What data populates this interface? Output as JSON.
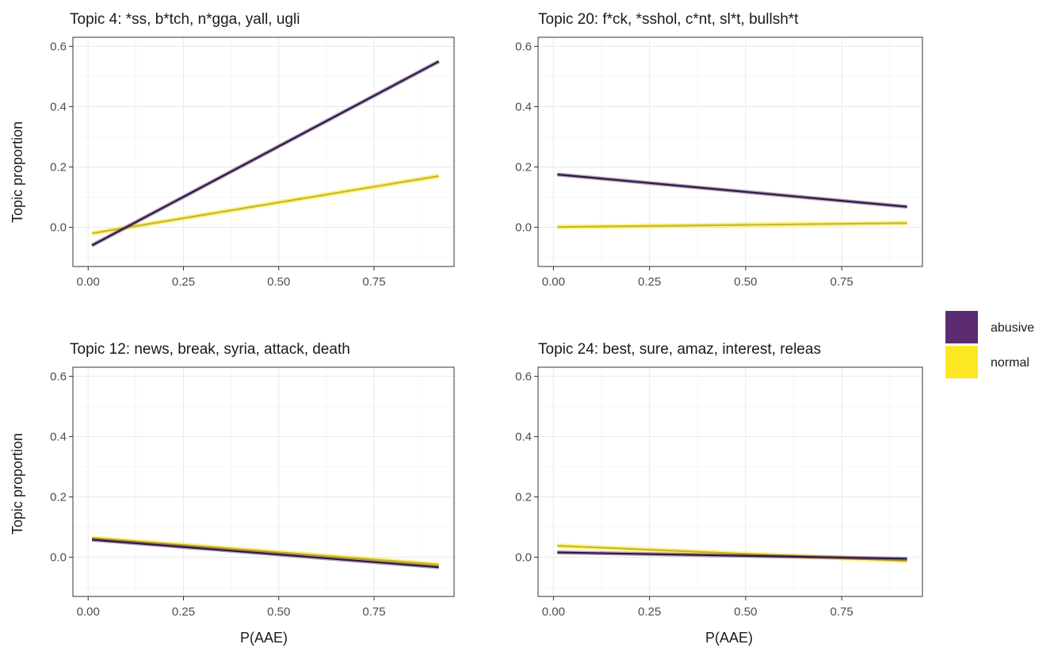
{
  "colors": {
    "abusive": "#5b2c6f",
    "normal": "#fde725",
    "abusive_line": "#2d1a3d",
    "normal_line": "#c9b62c"
  },
  "chart_data": {
    "type": "line",
    "xlabel": "P(AAE)",
    "ylabel": "Topic proportion",
    "xlim": [
      -0.04,
      0.96
    ],
    "ylim": [
      -0.13,
      0.63
    ],
    "x_ticks": [
      0.0,
      0.25,
      0.5,
      0.75
    ],
    "x_tick_labels": [
      "0.00",
      "0.25",
      "0.50",
      "0.75"
    ],
    "y_ticks": [
      0.0,
      0.2,
      0.4,
      0.6
    ],
    "y_tick_labels": [
      "0.0",
      "0.2",
      "0.4",
      "0.6"
    ],
    "grid": true,
    "legend": {
      "placement": "right",
      "entries": [
        {
          "name": "abusive",
          "color": "#5b2c6f"
        },
        {
          "name": "normal",
          "color": "#fde725"
        }
      ]
    },
    "panels": [
      {
        "title": "Topic 4: *ss, b*tch, n*gga, yall, ugli",
        "series": [
          {
            "name": "abusive",
            "x": [
              0.01,
              0.92
            ],
            "values": [
              -0.06,
              0.55
            ]
          },
          {
            "name": "normal",
            "x": [
              0.01,
              0.92
            ],
            "values": [
              -0.02,
              0.17
            ]
          }
        ]
      },
      {
        "title": "Topic 20: f*ck, *sshol, c*nt, sl*t, bullsh*t",
        "series": [
          {
            "name": "abusive",
            "x": [
              0.01,
              0.92
            ],
            "values": [
              0.175,
              0.068
            ]
          },
          {
            "name": "normal",
            "x": [
              0.01,
              0.92
            ],
            "values": [
              0.001,
              0.014
            ]
          }
        ]
      },
      {
        "title": "Topic 12: news, break, syria, attack, death",
        "series": [
          {
            "name": "abusive",
            "x": [
              0.01,
              0.92
            ],
            "values": [
              0.058,
              -0.033
            ]
          },
          {
            "name": "normal",
            "x": [
              0.01,
              0.92
            ],
            "values": [
              0.064,
              -0.024
            ]
          }
        ]
      },
      {
        "title": "Topic 24: best, sure, amaz, interest, releas",
        "series": [
          {
            "name": "abusive",
            "x": [
              0.01,
              0.92
            ],
            "values": [
              0.016,
              -0.005
            ]
          },
          {
            "name": "normal",
            "x": [
              0.01,
              0.92
            ],
            "values": [
              0.038,
              -0.012
            ]
          }
        ]
      }
    ]
  }
}
